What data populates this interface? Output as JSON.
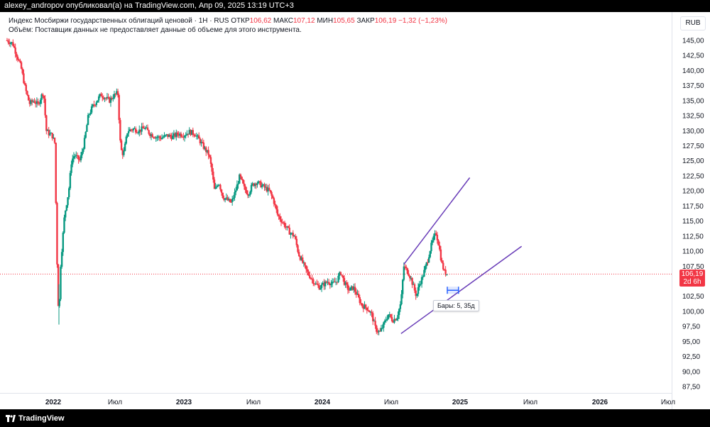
{
  "topbar": {
    "text": "alexey_andropov опубликовал(а) на TradingView.com, Апр 09, 2025 13:19 UTC+3"
  },
  "legend": {
    "line1_prefix": "Индекс Мосбиржи государственных облигаций ценовой · 1H · RUS",
    "open_label": "ОТКР",
    "open_value": "106,62",
    "high_label": "МАКС",
    "high_value": "107,12",
    "low_label": "МИН",
    "low_value": "105,65",
    "close_label": "ЗАКР",
    "close_value": "106,19",
    "change": "−1,32 (−1,23%)",
    "line2": "Объём: Поставщик данных не предоставляет данные об объеме для этого инструмента."
  },
  "currency": "RUB",
  "colors": {
    "up": "#089981",
    "down": "#f23645",
    "drawing": "#673ab7",
    "measure": "#2962ff"
  },
  "price_tag": {
    "value": "106,19",
    "countdown": "2d 6h"
  },
  "measure_tooltip": "Бары: 5, 35д",
  "brand": "TradingView",
  "chart_data": {
    "type": "candlestick",
    "y_ticks": [
      "145,00",
      "142,50",
      "140,00",
      "137,50",
      "135,00",
      "132,50",
      "130,00",
      "127,50",
      "125,00",
      "122,50",
      "120,00",
      "117,50",
      "115,00",
      "112,50",
      "110,00",
      "107,50",
      "105,00",
      "102,50",
      "100,00",
      "97,50",
      "95,00",
      "92,50",
      "90,00",
      "87,50"
    ],
    "x_ticks": [
      {
        "label": "2022",
        "bold": true
      },
      {
        "label": "Июл",
        "bold": false
      },
      {
        "label": "2023",
        "bold": true
      },
      {
        "label": "Июл",
        "bold": false
      },
      {
        "label": "2024",
        "bold": true
      },
      {
        "label": "Июл",
        "bold": false
      },
      {
        "label": "2025",
        "bold": true
      },
      {
        "label": "Июл",
        "bold": false
      },
      {
        "label": "2026",
        "bold": true
      },
      {
        "label": "Июл",
        "bold": false
      }
    ],
    "ylim": [
      85.5,
      146.5
    ],
    "last_price": 106.19,
    "close_path": [
      [
        2021.83,
        145.0
      ],
      [
        2021.87,
        144.5
      ],
      [
        2021.9,
        142.5
      ],
      [
        2021.93,
        140.5
      ],
      [
        2021.96,
        137.0
      ],
      [
        2021.99,
        134.5
      ],
      [
        2022.02,
        135.0
      ],
      [
        2022.05,
        134.3
      ],
      [
        2022.07,
        135.5
      ],
      [
        2022.09,
        136.5
      ],
      [
        2022.11,
        130.0
      ],
      [
        2022.13,
        129.5
      ],
      [
        2022.15,
        129.3
      ],
      [
        2022.17,
        128.0
      ],
      [
        2022.19,
        104.5
      ],
      [
        2022.2,
        98.5
      ],
      [
        2022.21,
        107.0
      ],
      [
        2022.24,
        116.0
      ],
      [
        2022.27,
        120.0
      ],
      [
        2022.29,
        125.0
      ],
      [
        2022.31,
        126.0
      ],
      [
        2022.33,
        125.5
      ],
      [
        2022.35,
        125.0
      ],
      [
        2022.38,
        128.0
      ],
      [
        2022.41,
        132.5
      ],
      [
        2022.44,
        134.0
      ],
      [
        2022.47,
        135.0
      ],
      [
        2022.5,
        136.0
      ],
      [
        2022.53,
        135.5
      ],
      [
        2022.56,
        135.0
      ],
      [
        2022.59,
        135.8
      ],
      [
        2022.62,
        136.3
      ],
      [
        2022.64,
        127.0
      ],
      [
        2022.66,
        126.0
      ],
      [
        2022.69,
        130.0
      ],
      [
        2022.73,
        130.3
      ],
      [
        2022.77,
        130.0
      ],
      [
        2022.81,
        130.5
      ],
      [
        2022.85,
        129.5
      ],
      [
        2022.89,
        129.0
      ],
      [
        2022.93,
        128.8
      ],
      [
        2022.97,
        129.2
      ],
      [
        2023.01,
        129.0
      ],
      [
        2023.05,
        129.5
      ],
      [
        2023.09,
        129.3
      ],
      [
        2023.13,
        129.8
      ],
      [
        2023.17,
        129.5
      ],
      [
        2023.2,
        128.5
      ],
      [
        2023.24,
        127.0
      ],
      [
        2023.27,
        126.0
      ],
      [
        2023.29,
        123.5
      ],
      [
        2023.31,
        120.0
      ],
      [
        2023.34,
        121.5
      ],
      [
        2023.37,
        119.0
      ],
      [
        2023.4,
        118.5
      ],
      [
        2023.43,
        118.0
      ],
      [
        2023.46,
        120.0
      ],
      [
        2023.49,
        122.5
      ],
      [
        2023.52,
        120.5
      ],
      [
        2023.55,
        119.5
      ],
      [
        2023.58,
        121.0
      ],
      [
        2023.61,
        121.5
      ],
      [
        2023.64,
        121.0
      ],
      [
        2023.67,
        120.5
      ],
      [
        2023.7,
        120.0
      ],
      [
        2023.73,
        118.5
      ],
      [
        2023.76,
        116.0
      ],
      [
        2023.79,
        115.0
      ],
      [
        2023.82,
        114.0
      ],
      [
        2023.85,
        113.0
      ],
      [
        2023.88,
        112.5
      ],
      [
        2023.91,
        109.5
      ],
      [
        2023.94,
        108.0
      ],
      [
        2023.97,
        106.5
      ],
      [
        2024.0,
        105.5
      ],
      [
        2024.03,
        104.5
      ],
      [
        2024.06,
        104.0
      ],
      [
        2024.09,
        104.5
      ],
      [
        2024.12,
        105.0
      ],
      [
        2024.15,
        104.5
      ],
      [
        2024.18,
        105.0
      ],
      [
        2024.21,
        106.5
      ],
      [
        2024.24,
        104.5
      ],
      [
        2024.27,
        103.5
      ],
      [
        2024.3,
        104.0
      ],
      [
        2024.33,
        102.5
      ],
      [
        2024.36,
        101.0
      ],
      [
        2024.4,
        100.5
      ],
      [
        2024.43,
        99.5
      ],
      [
        2024.46,
        97.0
      ],
      [
        2024.49,
        96.5
      ],
      [
        2024.52,
        98.0
      ],
      [
        2024.55,
        99.5
      ],
      [
        2024.58,
        98.5
      ],
      [
        2024.61,
        99.0
      ],
      [
        2024.64,
        101.5
      ],
      [
        2024.66,
        107.5
      ],
      [
        2024.69,
        106.5
      ],
      [
        2024.71,
        105.5
      ],
      [
        2024.73,
        104.0
      ],
      [
        2024.75,
        102.5
      ],
      [
        2024.77,
        104.5
      ],
      [
        2024.79,
        105.5
      ],
      [
        2024.81,
        107.0
      ],
      [
        2024.83,
        108.5
      ],
      [
        2024.85,
        110.5
      ],
      [
        2024.87,
        112.0
      ],
      [
        2024.89,
        113.0
      ],
      [
        2024.91,
        111.0
      ],
      [
        2024.93,
        108.0
      ],
      [
        2024.95,
        106.5
      ],
      [
        2024.97,
        106.19
      ]
    ],
    "drawings": {
      "upper_line": {
        "from": [
          2024.66,
          107.8
        ],
        "to": [
          2025.13,
          122.2
        ]
      },
      "lower_line": {
        "from": [
          2024.64,
          96.3
        ],
        "to": [
          2025.5,
          110.8
        ]
      },
      "measure": {
        "from": [
          2024.97,
          103.5
        ],
        "to": [
          2025.05,
          103.5
        ]
      }
    }
  }
}
